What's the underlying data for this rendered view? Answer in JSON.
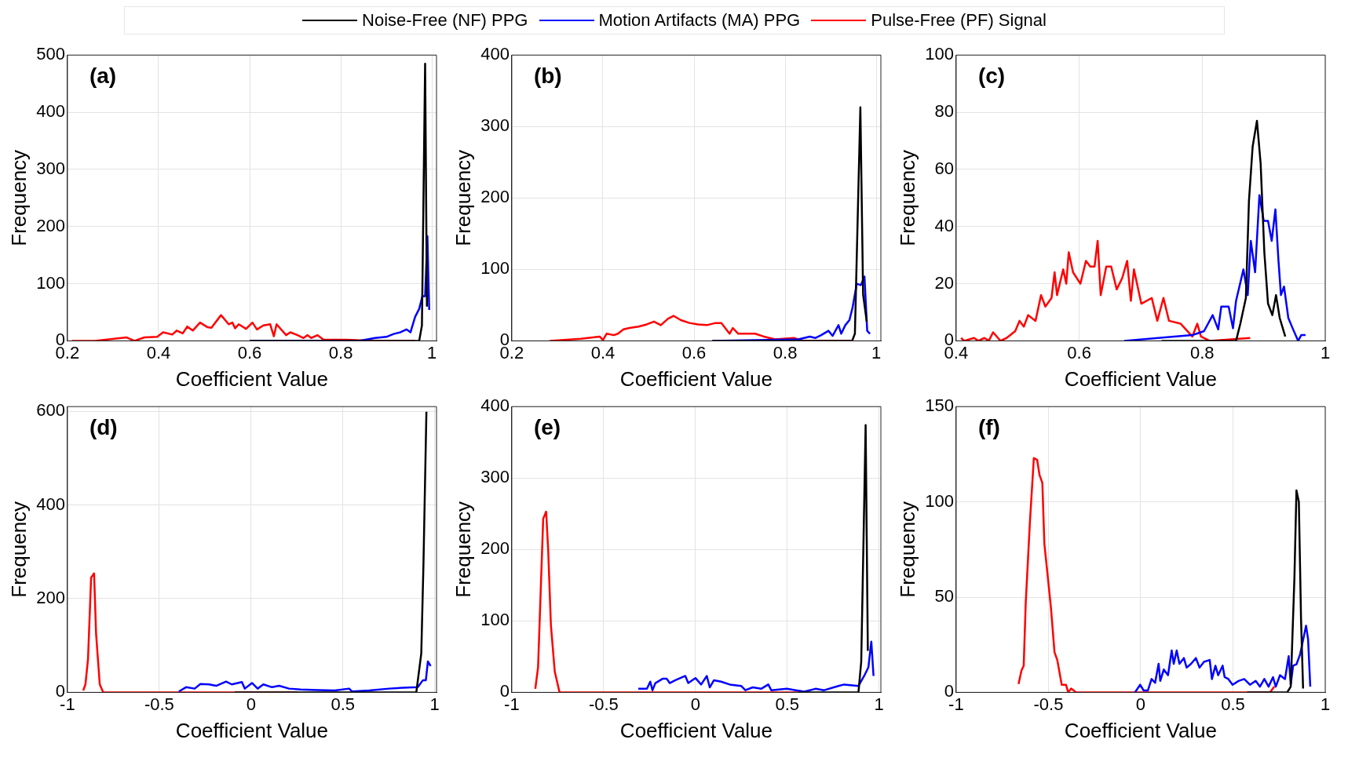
{
  "chart_data": [
    {
      "type": "line",
      "xlabel": "Coefficient Value",
      "ylabel": "Frequency",
      "annotations": [
        "(a)"
      ],
      "xlim": [
        0.2,
        1.01
      ],
      "xticks": [
        0.2,
        0.4,
        0.6,
        0.8,
        1
      ],
      "ylim": [
        0,
        500
      ],
      "yticks": [
        0,
        100,
        200,
        300,
        400,
        500
      ],
      "grid": true,
      "legend": "top",
      "series": [
        {
          "name": "Noise-Free (NF) PPG",
          "color": "#000000",
          "x": [
            0.6,
            0.972,
            0.978,
            0.985,
            0.989
          ],
          "values": [
            0,
            0,
            27,
            485,
            60
          ]
        },
        {
          "name": "Motion Artifacts (MA) PPG",
          "color": "#0000ff",
          "x": [
            0.6,
            0.84,
            0.875,
            0.9,
            0.916,
            0.931,
            0.944,
            0.953,
            0.963,
            0.972,
            0.979,
            0.985,
            0.99,
            0.994
          ],
          "values": [
            0,
            0,
            5,
            7,
            12,
            15,
            20,
            15,
            42,
            56,
            78,
            78,
            183,
            54
          ]
        },
        {
          "name": "Pulse-Free (PF) Signal",
          "color": "#ff0000",
          "x": [
            0.21,
            0.26,
            0.33,
            0.347,
            0.369,
            0.397,
            0.41,
            0.43,
            0.44,
            0.453,
            0.463,
            0.475,
            0.491,
            0.507,
            0.516,
            0.537,
            0.554,
            0.562,
            0.568,
            0.576,
            0.592,
            0.606,
            0.616,
            0.63,
            0.645,
            0.653,
            0.659,
            0.68,
            0.689,
            0.705,
            0.718,
            0.727,
            0.735,
            0.749,
            0.762,
            0.812,
            0.875,
            0.963
          ],
          "values": [
            0,
            0,
            6,
            0,
            6,
            7,
            15,
            11,
            18,
            13,
            25,
            18,
            32,
            24,
            23,
            45,
            29,
            32,
            22,
            29,
            21,
            32,
            20,
            27,
            29,
            8,
            29,
            10,
            15,
            10,
            5,
            10,
            5,
            10,
            2,
            2,
            0,
            0
          ]
        }
      ]
    },
    {
      "type": "line",
      "xlabel": "Coefficient Value",
      "ylabel": "Frequency",
      "annotations": [
        "(b)"
      ],
      "xlim": [
        0.2,
        1.01
      ],
      "xticks": [
        0.2,
        0.4,
        0.6,
        0.8,
        1
      ],
      "ylim": [
        0,
        400
      ],
      "yticks": [
        0,
        100,
        200,
        300,
        400
      ],
      "grid": true,
      "series": [
        {
          "color": "#000000",
          "x": [
            0.64,
            0.947,
            0.953,
            0.965,
            0.971,
            0.979
          ],
          "values": [
            0,
            0,
            10,
            327,
            65,
            27
          ]
        },
        {
          "color": "#0000ff",
          "x": [
            0.64,
            0.829,
            0.854,
            0.866,
            0.879,
            0.895,
            0.904,
            0.917,
            0.923,
            0.932,
            0.941,
            0.948,
            0.957,
            0.966,
            0.974,
            0.98,
            0.986
          ],
          "values": [
            0,
            2,
            6,
            4,
            8,
            14,
            7,
            22,
            10,
            22,
            29,
            47,
            80,
            78,
            90,
            14,
            10
          ]
        },
        {
          "color": "#ff0000",
          "x": [
            0.283,
            0.352,
            0.393,
            0.4,
            0.408,
            0.424,
            0.433,
            0.445,
            0.458,
            0.478,
            0.496,
            0.512,
            0.527,
            0.543,
            0.555,
            0.571,
            0.59,
            0.609,
            0.628,
            0.647,
            0.66,
            0.678,
            0.685,
            0.697,
            0.734,
            0.753,
            0.778,
            0.819,
            0.84,
            0.947
          ],
          "values": [
            0,
            3,
            6,
            1,
            10,
            8,
            10,
            16,
            18,
            20,
            23,
            27,
            22,
            31,
            35,
            29,
            25,
            23,
            22,
            25,
            25,
            10,
            18,
            10,
            10,
            6,
            2,
            4,
            0,
            0
          ]
        }
      ]
    },
    {
      "type": "line",
      "xlabel": "Coefficient Value",
      "ylabel": "Frequency",
      "annotations": [
        "(c)"
      ],
      "xlim": [
        0.4,
        1
      ],
      "xticks": [
        0.4,
        0.6,
        0.8,
        1
      ],
      "ylim": [
        0,
        100
      ],
      "yticks": [
        0,
        20,
        40,
        60,
        80,
        100
      ],
      "grid": true,
      "series": [
        {
          "color": "#000000",
          "x": [
            0.734,
            0.855,
            0.862,
            0.871,
            0.876,
            0.882,
            0.889,
            0.895,
            0.901,
            0.907,
            0.914,
            0.92,
            0.926,
            0.935
          ],
          "values": [
            0,
            0,
            6,
            15,
            49,
            68,
            77,
            62,
            31,
            13,
            9,
            16,
            8,
            1.5
          ]
        },
        {
          "color": "#0000ff",
          "x": [
            0.673,
            0.784,
            0.803,
            0.817,
            0.826,
            0.831,
            0.843,
            0.85,
            0.855,
            0.867,
            0.874,
            0.879,
            0.886,
            0.893,
            0.9,
            0.907,
            0.913,
            0.919,
            0.924,
            0.928,
            0.933,
            0.94,
            0.947,
            0.956,
            0.961,
            0.968
          ],
          "values": [
            0,
            2,
            3.4,
            9,
            4,
            12,
            12,
            4.4,
            14,
            25,
            16,
            35,
            24,
            51,
            42,
            42,
            35,
            46,
            28,
            16,
            19,
            8,
            4.4,
            0,
            2,
            2
          ]
        },
        {
          "color": "#ff0000",
          "x": [
            0.408,
            0.413,
            0.429,
            0.436,
            0.446,
            0.453,
            0.46,
            0.472,
            0.482,
            0.496,
            0.503,
            0.51,
            0.517,
            0.529,
            0.538,
            0.545,
            0.555,
            0.56,
            0.564,
            0.574,
            0.579,
            0.583,
            0.59,
            0.602,
            0.611,
            0.618,
            0.625,
            0.63,
            0.635,
            0.644,
            0.652,
            0.661,
            0.67,
            0.678,
            0.684,
            0.689,
            0.701,
            0.718,
            0.727,
            0.737,
            0.746,
            0.765,
            0.784,
            0.792,
            0.798,
            0.812,
            0.878
          ],
          "values": [
            1,
            0,
            1,
            0,
            1,
            0,
            3,
            0,
            1,
            3.4,
            7,
            5,
            9,
            7,
            16,
            12,
            15,
            24,
            16,
            25,
            20,
            31,
            24,
            20,
            28,
            26,
            26,
            35,
            16,
            26,
            26,
            18,
            22,
            28,
            14,
            25,
            13,
            15,
            7,
            15,
            7,
            6,
            1.5,
            6,
            1.5,
            0,
            1
          ]
        }
      ]
    },
    {
      "type": "line",
      "xlabel": "Coefficient Value",
      "ylabel": "Frequency",
      "annotations": [
        "(d)"
      ],
      "xlim": [
        -1,
        1.01
      ],
      "xticks": [
        -1,
        -0.5,
        0,
        0.5,
        1
      ],
      "ylim": [
        0,
        610
      ],
      "yticks": [
        0,
        200,
        400,
        600
      ],
      "grid": true,
      "series": [
        {
          "color": "#000000",
          "x": [
            -0.089,
            0.9,
            0.927,
            0.939,
            0.955
          ],
          "values": [
            0,
            0,
            83,
            275,
            599
          ]
        },
        {
          "color": "#0000ff",
          "x": [
            -0.393,
            -0.354,
            -0.307,
            -0.276,
            -0.229,
            -0.19,
            -0.136,
            -0.105,
            -0.05,
            -0.034,
            0.005,
            0.036,
            0.067,
            0.114,
            0.153,
            0.207,
            0.27,
            0.363,
            0.456,
            0.534,
            0.55,
            0.643,
            0.752,
            0.83,
            0.908,
            0.936,
            0.952,
            0.963,
            0.978
          ],
          "values": [
            2,
            11,
            8,
            18,
            17,
            14,
            23,
            17,
            22,
            8,
            20,
            8,
            17,
            11,
            14,
            8,
            6,
            5,
            4,
            8,
            2,
            4,
            8,
            10,
            11,
            26,
            26,
            66,
            56
          ]
        },
        {
          "color": "#ff0000",
          "x": [
            -0.914,
            -0.902,
            -0.888,
            -0.871,
            -0.855,
            -0.844,
            -0.824,
            -0.805,
            0.254
          ],
          "values": [
            4,
            17,
            71,
            245,
            254,
            125,
            17,
            0,
            0
          ]
        }
      ]
    },
    {
      "type": "line",
      "xlabel": "Coefficient Value",
      "ylabel": "Frequency",
      "annotations": [
        "(e)"
      ],
      "xlim": [
        -1,
        1.01
      ],
      "xticks": [
        -1,
        -0.5,
        0,
        0.5,
        1
      ],
      "ylim": [
        0,
        400
      ],
      "yticks": [
        0,
        100,
        200,
        300,
        400
      ],
      "grid": true,
      "series": [
        {
          "color": "#000000",
          "x": [
            0.561,
            0.888,
            0.903,
            0.916,
            0.927,
            0.939
          ],
          "values": [
            0,
            0,
            43,
            220,
            374,
            58
          ]
        },
        {
          "color": "#0000ff",
          "x": [
            -0.311,
            -0.264,
            -0.246,
            -0.234,
            -0.218,
            -0.179,
            -0.156,
            -0.14,
            -0.109,
            -0.055,
            -0.039,
            0,
            0.031,
            0.062,
            0.078,
            0.101,
            0.14,
            0.187,
            0.249,
            0.272,
            0.312,
            0.358,
            0.397,
            0.413,
            0.498,
            0.592,
            0.654,
            0.701,
            0.779,
            0.81,
            0.888,
            0.919,
            0.942,
            0.958,
            0.97
          ],
          "values": [
            5,
            5,
            15,
            3,
            13,
            19,
            19,
            13,
            17,
            23,
            13,
            20,
            11,
            23,
            7,
            17,
            15,
            11,
            9,
            3,
            7,
            5,
            11,
            3,
            5,
            1,
            5,
            3,
            9,
            11,
            9,
            23,
            35,
            71,
            23
          ]
        },
        {
          "color": "#ff0000",
          "x": [
            -0.872,
            -0.857,
            -0.829,
            -0.813,
            -0.802,
            -0.787,
            -0.766,
            -0.74,
            0.561
          ],
          "values": [
            5,
            35,
            243,
            253,
            200,
            94,
            29,
            0,
            0
          ]
        }
      ]
    },
    {
      "type": "line",
      "xlabel": "Coefficient Value",
      "ylabel": "Frequency",
      "annotations": [
        "(f)"
      ],
      "xlim": [
        -1,
        1
      ],
      "xticks": [
        -1,
        -0.5,
        0,
        0.5,
        1
      ],
      "ylim": [
        0,
        150
      ],
      "yticks": [
        0,
        50,
        100,
        150
      ],
      "grid": true,
      "series": [
        {
          "color": "#000000",
          "x": [
            0.576,
            0.794,
            0.813,
            0.833,
            0.844,
            0.857,
            0.869,
            0.88
          ],
          "values": [
            0,
            0,
            3,
            60,
            106,
            100,
            38,
            2
          ]
        },
        {
          "color": "#0000ff",
          "x": [
            -0.031,
            -0.003,
            0.016,
            0.039,
            0.059,
            0.078,
            0.097,
            0.106,
            0.125,
            0.148,
            0.168,
            0.179,
            0.195,
            0.21,
            0.234,
            0.249,
            0.273,
            0.299,
            0.319,
            0.343,
            0.374,
            0.386,
            0.405,
            0.42,
            0.444,
            0.455,
            0.475,
            0.498,
            0.53,
            0.561,
            0.592,
            0.623,
            0.646,
            0.67,
            0.693,
            0.717,
            0.732,
            0.755,
            0.782,
            0.802,
            0.813,
            0.826,
            0.844,
            0.864,
            0.896,
            0.907,
            0.919
          ],
          "values": [
            0,
            4,
            1,
            1,
            7,
            5,
            15,
            6,
            12,
            9,
            22,
            15,
            22,
            15,
            18,
            13,
            15,
            18,
            13,
            16,
            17,
            7,
            14,
            9,
            14,
            8,
            7,
            4,
            6,
            7,
            4,
            6,
            3,
            7,
            3,
            8,
            3,
            9,
            7,
            19,
            4,
            14,
            14.7,
            20,
            35,
            28,
            3
          ]
        },
        {
          "color": "#ff0000",
          "x": [
            -0.662,
            -0.646,
            -0.634,
            -0.623,
            -0.6,
            -0.579,
            -0.561,
            -0.548,
            -0.533,
            -0.522,
            -0.506,
            -0.486,
            -0.467,
            -0.452,
            -0.428,
            -0.405,
            -0.393,
            -0.377,
            -0.35,
            0.701,
            0.724
          ],
          "values": [
            4.4,
            11.5,
            14,
            47,
            90,
            123,
            122,
            114,
            110,
            78,
            63,
            44,
            21,
            17,
            4,
            4,
            0,
            2,
            0,
            0,
            3
          ]
        }
      ]
    }
  ]
}
